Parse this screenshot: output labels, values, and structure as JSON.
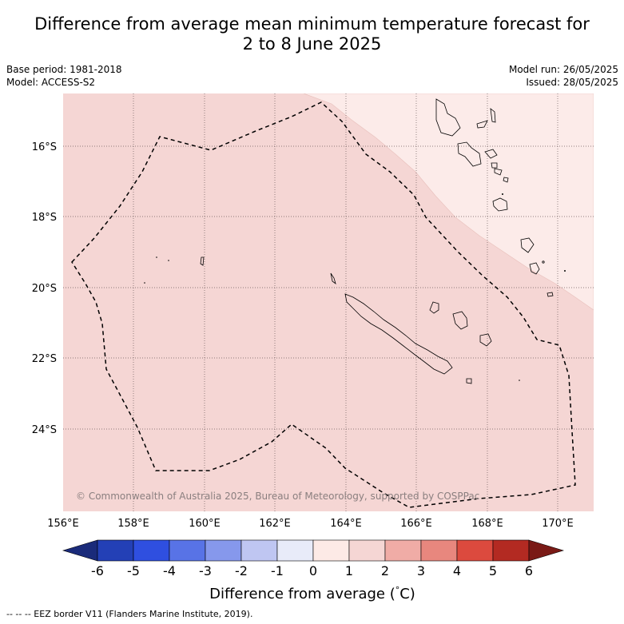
{
  "title_line1": "Difference from average mean minimum temperature forecast for",
  "title_line2": "2 to 8 June 2025",
  "base_period": "Base period: 1981-2018",
  "model": "Model: ACCESS-S2",
  "model_run": "Model run: 26/05/2025",
  "issued": "Issued: 28/05/2025",
  "map": {
    "lon_ticks": [
      "156°E",
      "158°E",
      "160°E",
      "162°E",
      "164°E",
      "166°E",
      "168°E",
      "170°E"
    ],
    "lat_ticks": [
      "16°S",
      "18°S",
      "20°S",
      "22°S",
      "24°S"
    ],
    "region_color": "#f5d6d4",
    "light_region_color": "#fcebe9",
    "copyright": "© Commonwealth of Australia 2025, Bureau of Meteorology, supported by COSPPac"
  },
  "colorbar": {
    "labels": [
      "-6",
      "-5",
      "-4",
      "-3",
      "-2",
      "-1",
      "0",
      "1",
      "2",
      "3",
      "4",
      "5",
      "6"
    ],
    "colors": [
      "#1a2b7a",
      "#2340b6",
      "#2f4fe0",
      "#5873e6",
      "#8698ec",
      "#bfc6f2",
      "#e8ebf9",
      "#fdeae6",
      "#f5d6d4",
      "#f0aca6",
      "#e8877e",
      "#dc4a3e",
      "#b32a22",
      "#7a1a16"
    ],
    "title": "Difference from average (",
    "unit_symbol": "°",
    "unit_letter": "C)"
  },
  "legend_text": "--  --  -- EEZ border V11 (Flanders Marine Institute, 2019)."
}
